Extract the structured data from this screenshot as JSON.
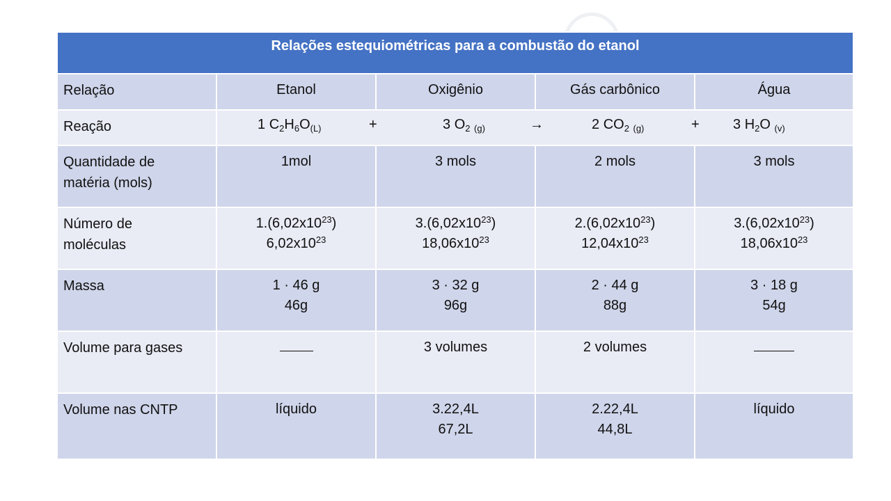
{
  "title": "Relações estequiométricas para a combustão do etanol",
  "header": [
    "Relação",
    "Etanol",
    "Oxigênio",
    "Gás carbônico",
    "Água"
  ],
  "reaction": {
    "label": "Reação",
    "ethanol": {
      "coef": "1",
      "c": "C",
      "c_sub": "2",
      "h": "H",
      "h_sub": "6",
      "o": "O",
      "state": "(L)"
    },
    "plus1": "+",
    "oxygen": {
      "coef": "3",
      "f": "O",
      "sub": "2",
      "state": "(g)"
    },
    "arrow": "→",
    "co2": {
      "coef": "2",
      "f": "CO",
      "sub": "2",
      "state": "(g)"
    },
    "plus2": "+",
    "water": {
      "coef": "3",
      "h": "H",
      "h_sub": "2",
      "o": "O",
      "state": "(v)"
    }
  },
  "rows": {
    "quantity": {
      "label_line1": "Quantidade de",
      "label_line2": "matéria (mols)",
      "values": [
        "1mol",
        "3 mols",
        "2 mols",
        "3 mols"
      ]
    },
    "molecules": {
      "label_line1": "Número de",
      "label_line2": "moléculas",
      "exp": "23",
      "line1": [
        {
          "pre": "1.(6,02x10",
          "post": ")"
        },
        {
          "pre": "3.(6,02x10",
          "post": ")"
        },
        {
          "pre": "2.(6,02x10",
          "post": ")"
        },
        {
          "pre": "3.(6,02x10",
          "post": ")"
        }
      ],
      "line2": [
        "6,02x10",
        "18,06x10",
        "12,04x10",
        "18,06x10"
      ]
    },
    "mass": {
      "label": "Massa",
      "line1": [
        "1 · 46 g",
        "3 · 32 g",
        "2 · 44 g",
        "3 · 18 g"
      ],
      "line2": [
        "46g",
        "96g",
        "88g",
        "54g"
      ]
    },
    "gas_volume": {
      "label": "Volume para gases",
      "values": [
        "",
        "3 volumes",
        "2 volumes",
        ""
      ]
    },
    "cntp": {
      "label": "Volume nas CNTP",
      "line1": [
        "líquido",
        "3.22,4L",
        "2.22,4L",
        "líquido"
      ],
      "line2": [
        "",
        "67,2L",
        "44,8L",
        ""
      ]
    }
  }
}
